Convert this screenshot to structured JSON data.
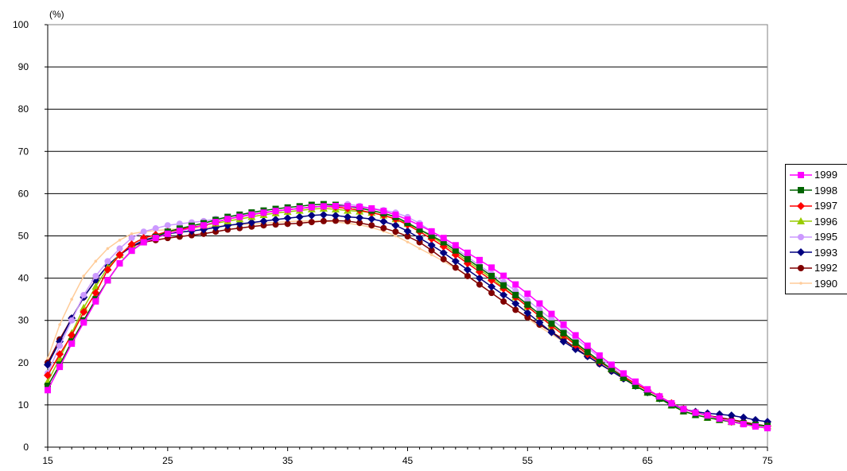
{
  "chart_data": {
    "type": "line",
    "title": "",
    "unit_label": "(%)",
    "xlabel": "",
    "ylabel": "",
    "xlim": [
      15,
      75
    ],
    "ylim": [
      0,
      100
    ],
    "x_ticks": [
      15,
      25,
      35,
      45,
      55,
      65,
      75
    ],
    "y_ticks": [
      0,
      10,
      20,
      30,
      40,
      50,
      60,
      70,
      80,
      90,
      100
    ],
    "grid": "horizontal",
    "legend_position": "right",
    "anchor_x": [
      15,
      16,
      17,
      18,
      19,
      20,
      21,
      22,
      23,
      25,
      28,
      30,
      33,
      36,
      38,
      40,
      42,
      44,
      46,
      48,
      50,
      52,
      54,
      56,
      58,
      60,
      62,
      64,
      66,
      68,
      70,
      72,
      75
    ],
    "series": [
      {
        "name": "1999",
        "color": "#ff00ff",
        "marker": "square",
        "values": [
          13.5,
          19.0,
          24.5,
          29.5,
          34.5,
          39.5,
          43.5,
          46.5,
          48.5,
          50.5,
          52.5,
          54.0,
          55.5,
          56.5,
          57.0,
          57.0,
          56.5,
          55.0,
          52.5,
          49.5,
          46.0,
          42.5,
          38.5,
          34.0,
          29.0,
          24.0,
          19.5,
          15.5,
          12.0,
          9.0,
          7.5,
          6.0,
          4.5
        ]
      },
      {
        "name": "1998",
        "color": "#006400",
        "marker": "square",
        "values": [
          14.5,
          19.5,
          25.0,
          30.0,
          35.0,
          39.5,
          43.5,
          46.5,
          48.5,
          51.0,
          53.0,
          54.5,
          56.0,
          57.0,
          57.5,
          57.0,
          56.0,
          54.5,
          51.5,
          48.5,
          44.5,
          40.5,
          36.0,
          31.5,
          27.0,
          22.5,
          18.5,
          14.5,
          11.5,
          8.5,
          7.0,
          6.0,
          5.0
        ]
      },
      {
        "name": "1997",
        "color": "#ff0000",
        "marker": "diamond",
        "values": [
          17.0,
          22.0,
          26.5,
          32.0,
          36.5,
          42.0,
          45.5,
          48.0,
          49.5,
          51.0,
          52.5,
          54.0,
          55.5,
          56.5,
          57.0,
          56.5,
          55.5,
          54.0,
          51.0,
          47.5,
          43.5,
          39.5,
          35.5,
          31.0,
          26.5,
          22.0,
          18.5,
          15.0,
          12.0,
          9.0,
          7.5,
          6.0,
          5.0
        ]
      },
      {
        "name": "1996",
        "color": "#99cc00",
        "marker": "triangle",
        "values": [
          15.5,
          21.0,
          27.0,
          33.0,
          38.0,
          42.5,
          45.5,
          48.0,
          49.5,
          51.0,
          52.5,
          53.5,
          55.0,
          56.0,
          56.5,
          56.0,
          55.5,
          54.0,
          51.5,
          48.0,
          44.0,
          40.0,
          35.5,
          31.0,
          26.5,
          22.5,
          18.5,
          14.5,
          11.5,
          8.5,
          7.0,
          6.0,
          5.0
        ]
      },
      {
        "name": "1995",
        "color": "#cc99ff",
        "marker": "circle",
        "values": [
          17.5,
          24.0,
          30.0,
          36.0,
          40.5,
          44.0,
          47.0,
          49.5,
          51.0,
          52.5,
          53.5,
          54.5,
          55.5,
          56.5,
          57.0,
          57.5,
          56.5,
          55.5,
          53.0,
          49.0,
          45.0,
          41.0,
          37.0,
          32.5,
          28.0,
          23.5,
          19.0,
          15.0,
          12.0,
          9.0,
          7.5,
          6.0,
          5.0
        ]
      },
      {
        "name": "1993",
        "color": "#000080",
        "marker": "diamond",
        "values": [
          19.5,
          25.0,
          30.5,
          35.5,
          39.5,
          43.0,
          45.5,
          47.5,
          49.0,
          50.5,
          51.5,
          52.5,
          53.5,
          54.5,
          55.0,
          54.5,
          54.0,
          52.5,
          49.5,
          46.0,
          42.0,
          38.0,
          34.0,
          29.5,
          25.0,
          21.5,
          18.0,
          14.5,
          11.5,
          9.0,
          8.0,
          7.5,
          6.0
        ]
      },
      {
        "name": "1992",
        "color": "#800000",
        "marker": "circle",
        "values": [
          20.0,
          25.5,
          30.5,
          35.5,
          39.5,
          43.0,
          45.5,
          47.5,
          48.5,
          49.5,
          50.5,
          51.5,
          52.5,
          53.0,
          53.5,
          53.5,
          52.5,
          51.0,
          48.5,
          44.5,
          40.5,
          36.5,
          32.5,
          29.0,
          25.5,
          21.5,
          18.0,
          14.5,
          11.5,
          9.0,
          7.5,
          6.5,
          5.0
        ]
      },
      {
        "name": "1990",
        "color": "#ffcc99",
        "marker": "dot",
        "values": [
          21.0,
          29.0,
          35.0,
          40.5,
          44.0,
          47.0,
          49.0,
          50.5,
          51.0,
          51.5,
          52.0,
          52.5,
          53.0,
          53.5,
          53.5,
          53.0,
          52.0,
          50.0,
          47.0,
          44.0,
          40.5,
          36.5,
          32.5,
          28.5,
          25.0,
          21.5,
          18.0,
          14.5,
          11.5,
          9.0,
          7.5,
          6.0,
          4.5
        ]
      }
    ]
  }
}
